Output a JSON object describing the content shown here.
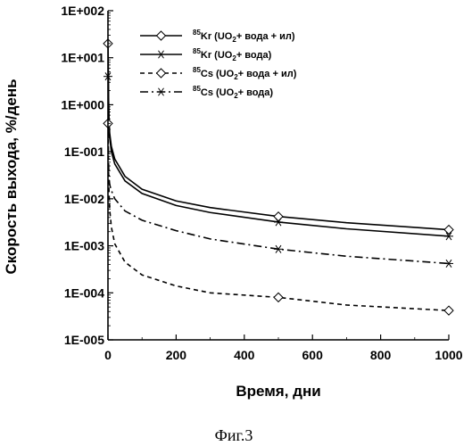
{
  "chart_data": {
    "type": "line",
    "xlabel": "Время, дни",
    "ylabel": "Скорость выхода, %/день",
    "xlim": [
      0,
      1000
    ],
    "ylim": [
      1e-05,
      100
    ],
    "yscale": "log",
    "x_ticks": [
      "0",
      "200",
      "400",
      "600",
      "800",
      "1000"
    ],
    "y_ticks": [
      "1E-005",
      "1E-004",
      "1E-003",
      "1E-002",
      "1E-001",
      "1E+000",
      "1E+001",
      "1E+002"
    ],
    "grid": false,
    "legend_position": "top-right",
    "series": [
      {
        "name_sup": "85",
        "name": "Kr (UO",
        "name_sub": "2",
        "name_tail": "+ вода + ил)",
        "line": "solid",
        "marker": "diamond",
        "x": [
          0,
          0.5,
          1,
          2,
          3,
          5,
          10,
          20,
          50,
          100,
          200,
          300,
          500,
          700,
          1000
        ],
        "y": [
          20,
          15,
          5,
          1.2,
          0.5,
          0.25,
          0.13,
          0.07,
          0.03,
          0.016,
          0.009,
          0.0065,
          0.0042,
          0.0031,
          0.0022
        ],
        "marker_x": [
          0,
          500,
          1000
        ],
        "marker_y": [
          20,
          0.0042,
          0.0022
        ]
      },
      {
        "name_sup": "85",
        "name": "Kr (UO",
        "name_sub": "2",
        "name_tail": "+ вода)",
        "line": "solid",
        "marker": "asterisk",
        "x": [
          0,
          0.5,
          1,
          2,
          3,
          5,
          10,
          20,
          50,
          100,
          200,
          300,
          500,
          700,
          1000
        ],
        "y": [
          15,
          10,
          4,
          1,
          0.4,
          0.2,
          0.1,
          0.055,
          0.024,
          0.013,
          0.0072,
          0.0051,
          0.0032,
          0.0023,
          0.0016
        ],
        "marker_x": [
          0,
          500,
          1000
        ],
        "marker_y": [
          4,
          0.0032,
          0.0016
        ]
      },
      {
        "name_sup": "85",
        "name": "Cs (UO",
        "name_sub": "2",
        "name_tail": "+ вода + ил)",
        "line": "dashed",
        "marker": "diamond",
        "x": [
          0,
          1,
          2,
          3,
          5,
          10,
          20,
          50,
          100,
          200,
          300,
          500,
          700,
          1000
        ],
        "y": [
          0.4,
          0.1,
          0.03,
          0.015,
          0.006,
          0.0025,
          0.0011,
          0.00045,
          0.00024,
          0.00014,
          0.0001,
          8e-05,
          5.5e-05,
          4.2e-05
        ],
        "marker_x": [
          0,
          500,
          1000
        ],
        "marker_y": [
          0.4,
          8e-05,
          4.2e-05
        ]
      },
      {
        "name_sup": "85",
        "name": "Cs (UO",
        "name_sub": "2",
        "name_tail": "+ вода)",
        "line": "dash-dot",
        "marker": "asterisk",
        "x": [
          0,
          1,
          2,
          3,
          5,
          10,
          20,
          50,
          100,
          200,
          300,
          500,
          700,
          1000
        ],
        "y": [
          0.3,
          0.12,
          0.05,
          0.03,
          0.02,
          0.015,
          0.01,
          0.0055,
          0.0035,
          0.0021,
          0.0014,
          0.00085,
          0.0006,
          0.00042
        ],
        "marker_x": [
          500,
          1000
        ],
        "marker_y": [
          0.00085,
          0.00042
        ]
      }
    ]
  },
  "caption": "Фиг.3"
}
